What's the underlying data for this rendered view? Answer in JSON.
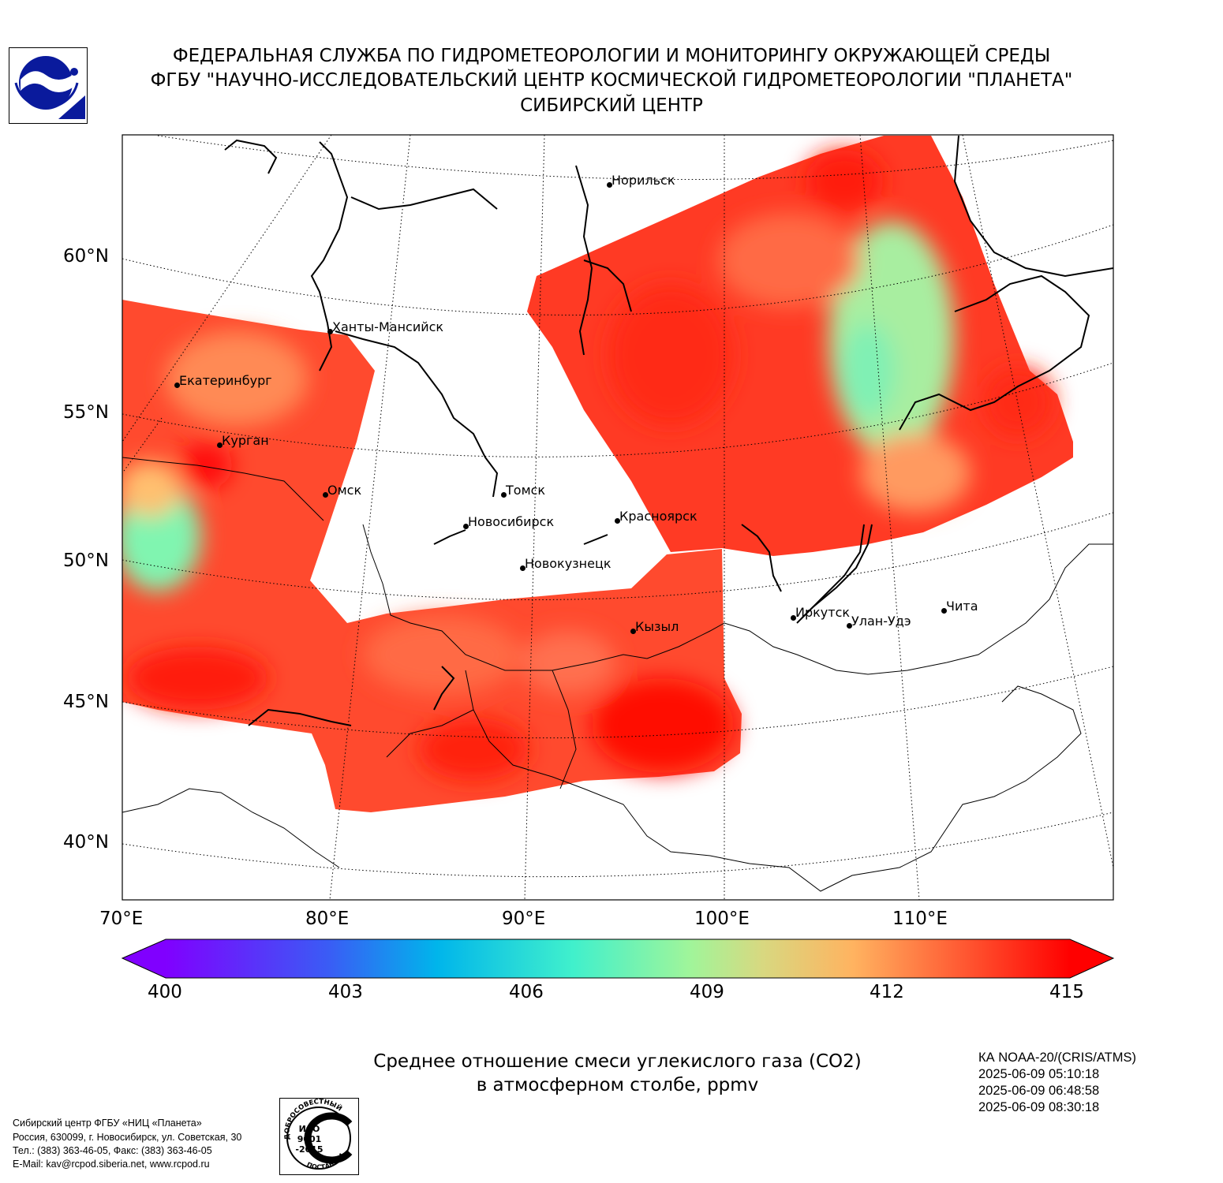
{
  "header": {
    "line1": "ФЕДЕРАЛЬНАЯ СЛУЖБА ПО ГИДРОМЕТЕОРОЛОГИИ И МОНИТОРИНГУ ОКРУЖАЮЩЕЙ СРЕДЫ",
    "line2": "ФГБУ \"НАУЧНО-ИССЛЕДОВАТЕЛЬСКИЙ ЦЕНТР КОСМИЧЕСКОЙ ГИДРОМЕТЕОРОЛОГИИ \"ПЛАНЕТА\"",
    "line3": "СИБИРСКИЙ ЦЕНТР"
  },
  "map": {
    "latitude_labels": [
      "60°N",
      "55°N",
      "50°N",
      "45°N",
      "40°N"
    ],
    "longitude_labels": [
      "70°E",
      "80°E",
      "90°E",
      "100°E",
      "110°E"
    ],
    "cities": [
      {
        "name": "Норильск"
      },
      {
        "name": "Ханты-Мансийск"
      },
      {
        "name": "Екатеринбург"
      },
      {
        "name": "Курган"
      },
      {
        "name": "Омск"
      },
      {
        "name": "Томск"
      },
      {
        "name": "Новосибирск"
      },
      {
        "name": "Красноярск"
      },
      {
        "name": "Новокузнецк"
      },
      {
        "name": "Кызыл"
      },
      {
        "name": "Иркутск"
      },
      {
        "name": "Улан-Удэ"
      },
      {
        "name": "Чита"
      }
    ]
  },
  "colorbar": {
    "min": 400,
    "max": 415,
    "ticks": [
      "400",
      "403",
      "406",
      "409",
      "412",
      "415"
    ],
    "colormap": "rainbow",
    "colors": [
      "#8000ff",
      "#00b5eb",
      "#80ffb4",
      "#ffb360",
      "#ff0000"
    ]
  },
  "caption": {
    "line1": "Среднее отношение смеси углекислого газа (CO2)",
    "line2": "в атмосферном столбе, ppmv"
  },
  "satellite": {
    "name": "КА NOAA-20/(CRIS/ATMS)",
    "passes": [
      "2025-06-09 05:10:18",
      "2025-06-09 06:48:58",
      "2025-06-09 08:30:18"
    ]
  },
  "contact": {
    "line1": "Сибирский центр ФГБУ «НИЦ «Планета»",
    "line2": "Россия, 630099, г. Новосибирск, ул. Советская, 30",
    "line3": "Тел.: (383) 363-46-05, Факс: (383) 363-46-05",
    "line4": "E-Mail: kav@rcpod.siberia.net, www.rcpod.ru"
  },
  "iso_badge": {
    "top_text": "ДОБРОСОВЕСТНЫЙ",
    "center_text": [
      "ИСО",
      "9001",
      "-2015"
    ],
    "bottom_text": "ПОСТАВЩИК"
  }
}
